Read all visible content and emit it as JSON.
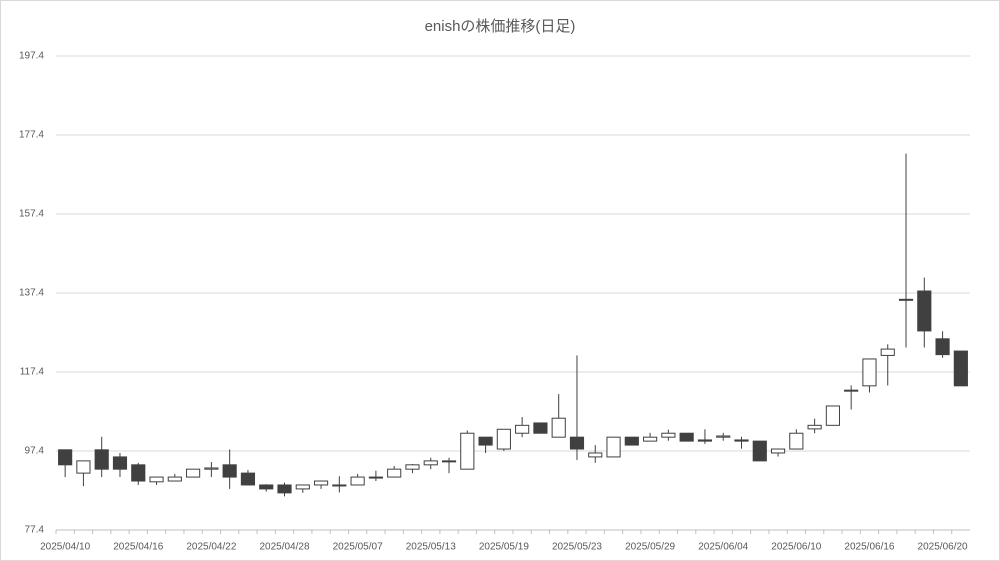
{
  "chart_data": {
    "type": "candlestick",
    "title": "enishの株価推移(日足)",
    "categories": [
      "2025/04/10",
      null,
      null,
      null,
      "2025/04/16",
      null,
      null,
      null,
      "2025/04/22",
      null,
      null,
      null,
      "2025/04/28",
      null,
      null,
      null,
      "2025/05/07",
      null,
      null,
      null,
      "2025/05/13",
      null,
      null,
      null,
      "2025/05/19",
      null,
      null,
      null,
      "2025/05/23",
      null,
      null,
      null,
      "2025/05/29",
      null,
      null,
      null,
      "2025/06/04",
      null,
      null,
      null,
      "2025/06/10",
      null,
      null,
      null,
      "2025/06/16",
      null,
      null,
      null,
      "2025/06/20",
      null
    ],
    "open": [
      97.7,
      91.8,
      97.7,
      95.9,
      93.9,
      89.6,
      89.8,
      90.8,
      92.8,
      93.9,
      91.8,
      88.8,
      88.8,
      87.8,
      88.8,
      88.6,
      88.8,
      90.6,
      90.8,
      92.8,
      93.9,
      94.7,
      92.8,
      100.9,
      97.9,
      101.9,
      104.5,
      100.9,
      100.9,
      95.9,
      95.9,
      100.9,
      99.9,
      100.9,
      101.9,
      100.2,
      100.9,
      100.2,
      99.9,
      96.9,
      97.9,
      103.0,
      103.9,
      112.6,
      113.9,
      121.6,
      135.6,
      137.9,
      125.8,
      122.7
    ],
    "high": [
      97.8,
      94.9,
      101.0,
      96.9,
      94.4,
      90.8,
      91.6,
      92.8,
      94.6,
      97.8,
      92.6,
      89.0,
      89.4,
      88.8,
      89.8,
      91.0,
      91.6,
      92.4,
      93.6,
      94.1,
      95.7,
      95.7,
      102.6,
      100.9,
      102.9,
      106.0,
      104.5,
      111.8,
      121.6,
      98.9,
      100.9,
      100.9,
      102.0,
      102.8,
      101.9,
      102.9,
      102.0,
      101.0,
      99.9,
      98.0,
      102.9,
      105.6,
      108.8,
      114.0,
      120.7,
      124.4,
      172.7,
      141.3,
      127.7,
      122.7
    ],
    "low": [
      90.8,
      88.5,
      90.8,
      90.8,
      88.8,
      88.8,
      89.8,
      90.8,
      90.8,
      87.8,
      88.8,
      87.1,
      85.9,
      86.8,
      87.8,
      86.9,
      88.8,
      89.8,
      90.8,
      91.8,
      92.8,
      91.8,
      92.8,
      96.9,
      97.4,
      100.9,
      101.9,
      100.9,
      95.1,
      94.4,
      95.9,
      98.9,
      99.9,
      100.0,
      99.9,
      99.2,
      100.0,
      98.0,
      94.9,
      96.0,
      97.9,
      101.9,
      103.9,
      107.9,
      112.2,
      114.0,
      123.6,
      123.6,
      121.0,
      113.9
    ],
    "close": [
      93.9,
      94.9,
      92.8,
      92.8,
      89.8,
      90.8,
      90.8,
      92.8,
      93.1,
      90.8,
      88.8,
      87.8,
      86.8,
      88.8,
      89.8,
      88.8,
      90.8,
      90.8,
      92.8,
      93.9,
      94.9,
      94.9,
      101.9,
      98.9,
      102.9,
      103.9,
      101.9,
      105.7,
      97.9,
      96.9,
      100.9,
      98.9,
      100.9,
      101.9,
      99.9,
      99.9,
      101.2,
      99.9,
      94.9,
      97.9,
      101.9,
      103.9,
      108.8,
      112.8,
      120.7,
      123.2,
      135.8,
      127.8,
      121.8,
      113.9
    ],
    "up_color": "#ffffff",
    "down_color": "#404040",
    "line_color": "#404040",
    "ylim": [
      77.4,
      197.4
    ],
    "yticks": [
      77.4,
      97.4,
      117.4,
      137.4,
      157.4,
      177.4,
      197.4
    ],
    "grid": true
  }
}
